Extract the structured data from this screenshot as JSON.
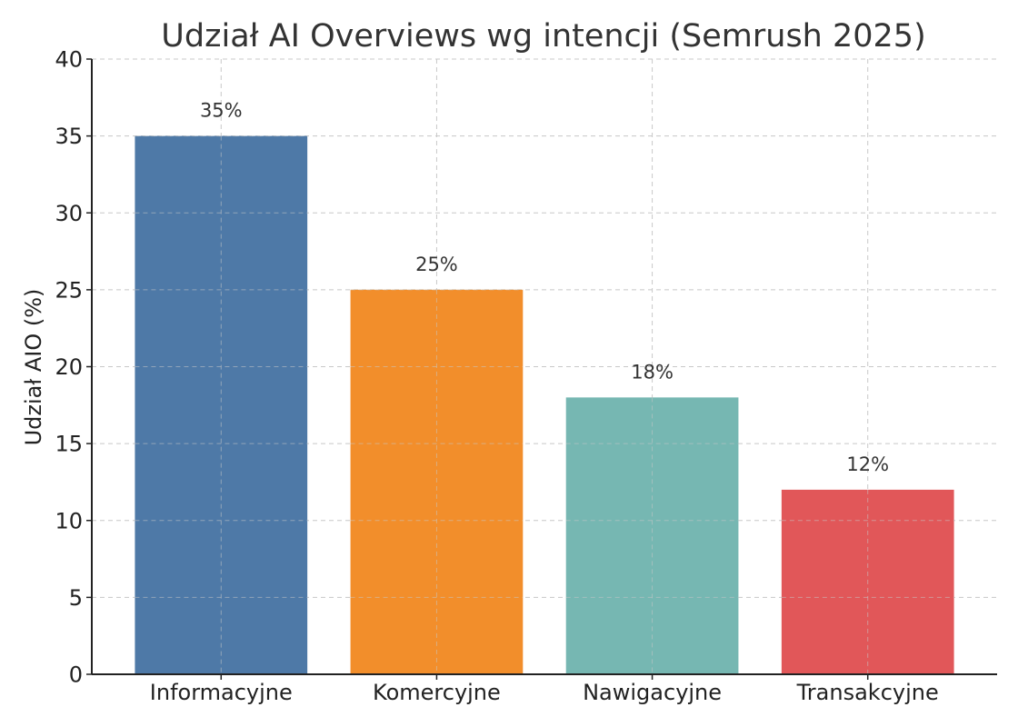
{
  "chart_data": {
    "type": "bar",
    "title": "Udział AI Overviews wg intencji (Semrush 2025)",
    "xlabel": "",
    "ylabel": "Udział AIO (%)",
    "categories": [
      "Informacyjne",
      "Komercyjne",
      "Nawigacyjne",
      "Transakcyjne"
    ],
    "values": [
      35,
      25,
      18,
      12
    ],
    "data_labels": [
      "35%",
      "25%",
      "18%",
      "12%"
    ],
    "colors": [
      "#4e79a7",
      "#f28e2b",
      "#76b7b2",
      "#e15759"
    ],
    "ylim": [
      0,
      40
    ],
    "yticks": [
      0,
      5,
      10,
      15,
      20,
      25,
      30,
      35,
      40
    ],
    "grid": true,
    "legend": "none"
  }
}
